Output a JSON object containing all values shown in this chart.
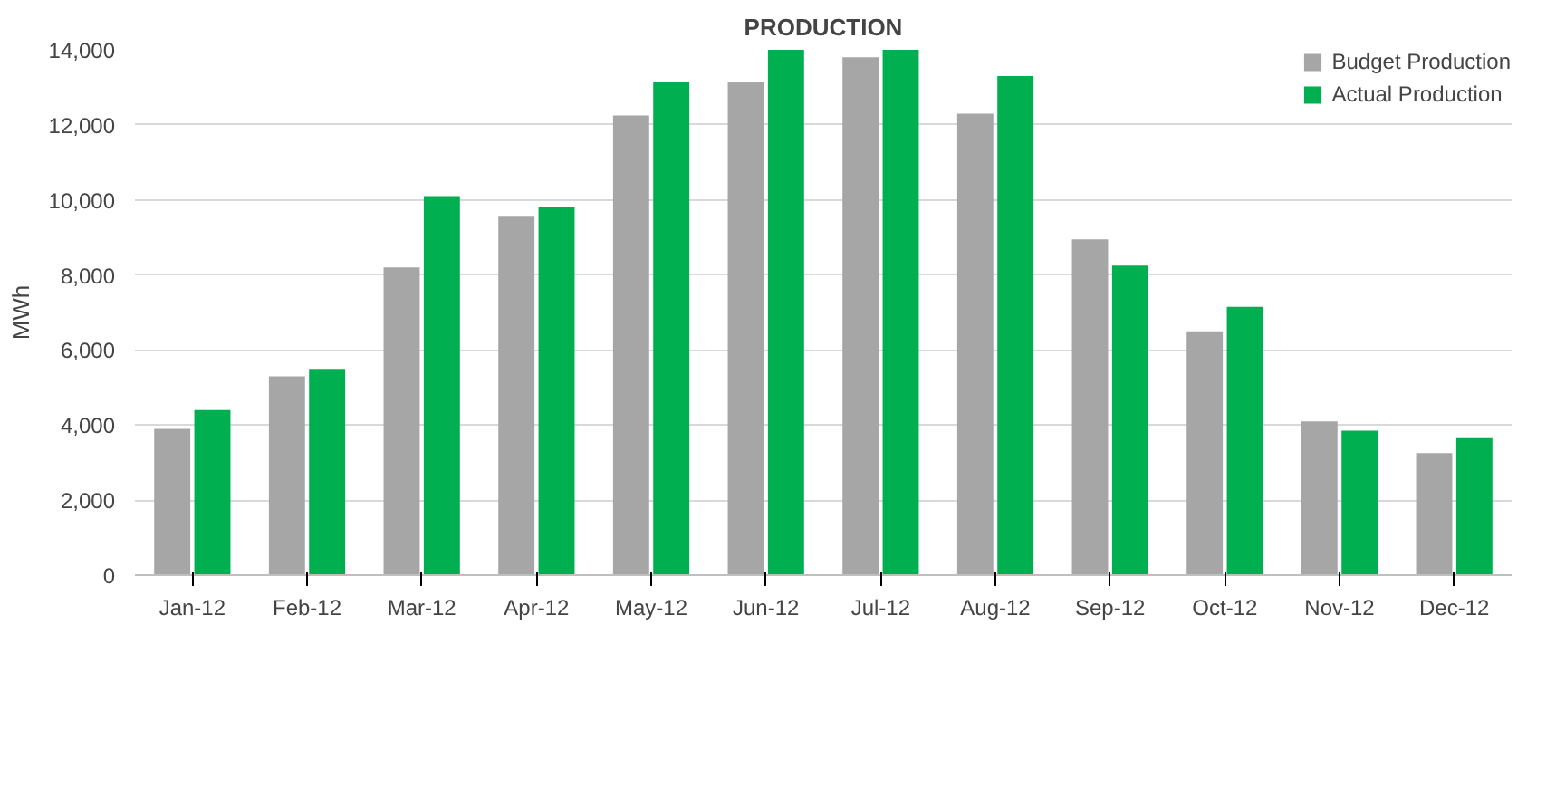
{
  "chart_data": {
    "type": "bar",
    "title": "PRODUCTION",
    "ylabel": "MWh",
    "categories": [
      "Jan-12",
      "Feb-12",
      "Mar-12",
      "Apr-12",
      "May-12",
      "Jun-12",
      "Jul-12",
      "Aug-12",
      "Sep-12",
      "Oct-12",
      "Nov-12",
      "Dec-12"
    ],
    "series": [
      {
        "name": "Budget Production",
        "color": "#a6a6a6",
        "values": [
          3900,
          5300,
          8200,
          9550,
          12250,
          13150,
          13800,
          12300,
          8950,
          6500,
          4100,
          3250
        ]
      },
      {
        "name": "Actual Production",
        "color": "#00b050",
        "values": [
          4400,
          5500,
          10100,
          9800,
          13150,
          14000,
          14000,
          13300,
          8250,
          7150,
          3850,
          3650
        ]
      }
    ],
    "ylim": [
      0,
      14000
    ],
    "yticks": [
      {
        "value": 0,
        "label": "0"
      },
      {
        "value": 2000,
        "label": "2,000"
      },
      {
        "value": 4000,
        "label": "4,000"
      },
      {
        "value": 6000,
        "label": "6,000"
      },
      {
        "value": 8000,
        "label": "8,000"
      },
      {
        "value": 10000,
        "label": "10,000"
      },
      {
        "value": 12000,
        "label": "12,000"
      },
      {
        "value": 14000,
        "label": "14,000"
      }
    ],
    "grid": "y",
    "legend": "top right"
  }
}
